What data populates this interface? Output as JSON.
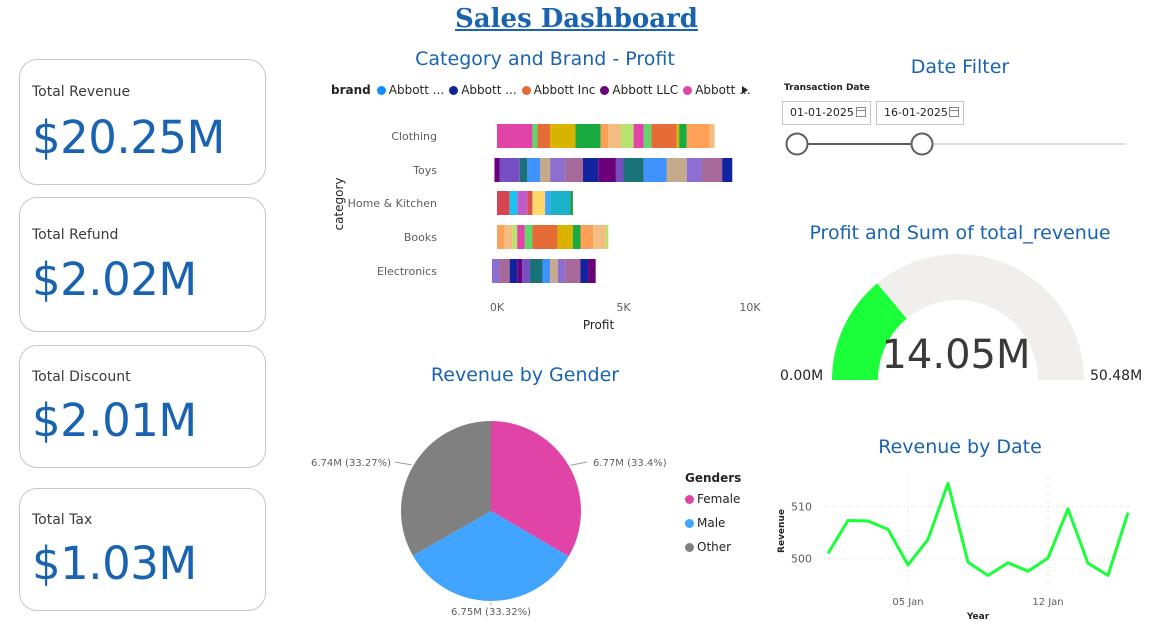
{
  "title": "Sales Dashboard",
  "kpis": {
    "revenue": {
      "label": "Total Revenue",
      "value": "$20.25M"
    },
    "refund": {
      "label": "Total Refund",
      "value": "$2.02M"
    },
    "discount": {
      "label": "Total Discount",
      "value": "$2.01M"
    },
    "tax": {
      "label": "Total Tax",
      "value": "$1.03M"
    }
  },
  "category_chart": {
    "title": "Category and Brand - Profit",
    "legend_title": "brand",
    "legend_items": [
      {
        "label": "Abbott ...",
        "color": "#118dff"
      },
      {
        "label": "Abbott ...",
        "color": "#12239e"
      },
      {
        "label": "Abbott Inc",
        "color": "#e66c37"
      },
      {
        "label": "Abbott LLC",
        "color": "#6b007b"
      },
      {
        "label": "Abbott ...",
        "color": "#e044a7"
      }
    ],
    "y_title": "category",
    "x_title": "Profit",
    "x_ticks": [
      "0K",
      "5K",
      "10K"
    ]
  },
  "date_filter": {
    "title": "Date Filter",
    "label": "Transaction Date",
    "start": "01-01-2025",
    "end": "16-01-2025",
    "range_position": {
      "start_fraction": 0.0,
      "end_fraction": 0.38
    }
  },
  "gauge": {
    "title": "Profit and Sum of total_revenue",
    "value": "14.05M",
    "min": "0.00M",
    "max": "50.48M",
    "fill_fraction": 0.2783,
    "fill_color": "#1aff3a"
  },
  "gender_chart": {
    "title": "Revenue by Gender",
    "legend_title": "Genders",
    "items": [
      {
        "label": "Female",
        "color": "#e044a7"
      },
      {
        "label": "Male",
        "color": "#41a4ff"
      },
      {
        "label": "Other",
        "color": "#808080"
      }
    ]
  },
  "date_chart": {
    "title": "Revenue by Date",
    "y_title": "Revenue",
    "x_title": "Year",
    "y_ticks": [
      "510",
      "500"
    ],
    "x_ticks": [
      "05 Jan",
      "12 Jan"
    ],
    "line_color": "#1aff3a"
  },
  "chart_data": [
    {
      "type": "bar",
      "title": "Category and Brand - Profit",
      "xlabel": "Profit",
      "ylabel": "category",
      "xlim": [
        0,
        10000
      ],
      "categories": [
        "Clothing",
        "Toys",
        "Home & Kitchen",
        "Books",
        "Electronics"
      ],
      "stacked": true,
      "category_start": [
        0,
        -100,
        0,
        0,
        -200
      ],
      "segments": [
        {
          "values": [
            1400,
            200,
            500,
            1000,
            1000,
            300,
            500,
            500,
            400,
            300,
            1000,
            100,
            300,
            900,
            200
          ]
        },
        {
          "values": [
            200,
            800,
            300,
            500,
            400,
            600,
            700,
            600,
            700,
            300,
            800,
            900,
            800,
            600,
            800,
            400
          ]
        },
        {
          "values": [
            500,
            300,
            400,
            200,
            500,
            200,
            800,
            100
          ]
        },
        {
          "values": [
            300,
            300,
            200,
            300,
            300,
            1000,
            600,
            300,
            500,
            500,
            100
          ]
        },
        {
          "values": [
            300,
            400,
            300,
            200,
            300,
            500,
            300,
            300,
            300,
            600,
            300,
            300
          ]
        }
      ]
    },
    {
      "type": "pie",
      "title": "Revenue by Gender",
      "labels": [
        "Female",
        "Male",
        "Other"
      ],
      "values": [
        6.77,
        6.75,
        6.74
      ],
      "data_labels": [
        "6.77M (33.4%)",
        "6.75M (33.32%)",
        "6.74M (33.27%)"
      ]
    },
    {
      "type": "line",
      "title": "Revenue by Date",
      "xlabel": "Year",
      "ylabel": "Revenue",
      "x": [
        "01 Jan",
        "02 Jan",
        "03 Jan",
        "04 Jan",
        "05 Jan",
        "06 Jan",
        "07 Jan",
        "08 Jan",
        "09 Jan",
        "10 Jan",
        "11 Jan",
        "12 Jan",
        "13 Jan",
        "14 Jan",
        "15 Jan",
        "16 Jan"
      ],
      "values": [
        501,
        507.3,
        507.2,
        505.6,
        498.8,
        503.7,
        514.4,
        499.3,
        496.8,
        499.2,
        497.6,
        500.1,
        509.5,
        499.1,
        496.8,
        508.8
      ],
      "ylim": [
        494,
        516
      ]
    }
  ]
}
